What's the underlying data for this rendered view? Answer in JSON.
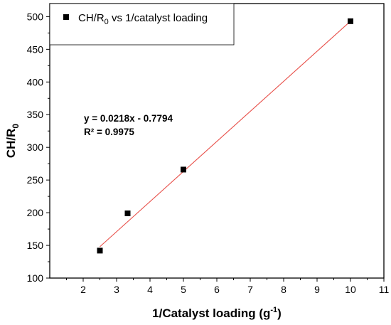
{
  "chart_data": {
    "type": "scatter",
    "title": "",
    "xlabel": {
      "main": "1/Catalyst loading (g",
      "sup": "-1",
      "close": ")"
    },
    "ylabel": {
      "main": "CH/R",
      "sub": "0"
    },
    "xlim": [
      1,
      11
    ],
    "ylim": [
      100,
      520
    ],
    "x_ticks": [
      2,
      3,
      4,
      5,
      6,
      7,
      8,
      9,
      10,
      11
    ],
    "y_ticks": [
      100,
      150,
      200,
      250,
      300,
      350,
      400,
      450,
      500
    ],
    "grid": false,
    "legend": {
      "position": "top-left",
      "label": {
        "pre": "CH/R",
        "sub": "0",
        "post": " vs 1/catalyst loading"
      }
    },
    "series": [
      {
        "name": "CH/R0 vs 1/catalyst loading",
        "marker": "square",
        "color": "#000000",
        "x": [
          2.5,
          3.33,
          5,
          10
        ],
        "y": [
          142,
          199,
          266,
          493
        ]
      }
    ],
    "fit_line": {
      "color": "#e8504a",
      "x": [
        2.5,
        10
      ],
      "y": [
        148,
        493
      ]
    },
    "annotations": {
      "equation": "y = 0.0218x - 0.7794",
      "r2": "R² = 0.9975"
    }
  }
}
